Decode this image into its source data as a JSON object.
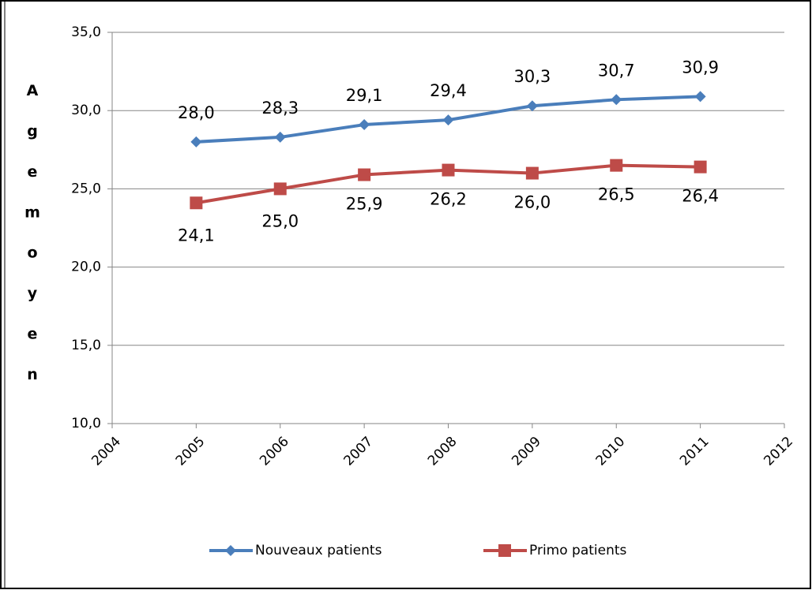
{
  "chart_data": {
    "type": "line",
    "y_label": "Age moyen",
    "x": [
      2005,
      2006,
      2007,
      2008,
      2009,
      2010,
      2011
    ],
    "xlim": [
      2004,
      2012
    ],
    "xticks": [
      2004,
      2005,
      2006,
      2007,
      2008,
      2009,
      2010,
      2011,
      2012
    ],
    "ylim": [
      10,
      35
    ],
    "yticks": [
      {
        "value": 10,
        "label": "10,0"
      },
      {
        "value": 15,
        "label": "15,0"
      },
      {
        "value": 20,
        "label": "20,0"
      },
      {
        "value": 25,
        "label": "25,0"
      },
      {
        "value": 30,
        "label": "30,0"
      },
      {
        "value": 35,
        "label": "35,0"
      }
    ],
    "grid": true,
    "legend": "bottom",
    "series": [
      {
        "name": "Nouveaux patients",
        "color": "#4a7ebb",
        "marker": "diamond",
        "values": [
          28.0,
          28.3,
          29.1,
          29.4,
          30.3,
          30.7,
          30.9
        ],
        "value_labels": [
          "28,0",
          "28,3",
          "29,1",
          "29,4",
          "30,3",
          "30,7",
          "30,9"
        ]
      },
      {
        "name": "Primo patients",
        "color": "#be4b48",
        "marker": "square",
        "values": [
          24.1,
          25.0,
          25.9,
          26.2,
          26.0,
          26.5,
          26.4
        ],
        "value_labels": [
          "24,1",
          "25,0",
          "25,9",
          "26,2",
          "26,0",
          "26,5",
          "26,4"
        ]
      }
    ]
  }
}
